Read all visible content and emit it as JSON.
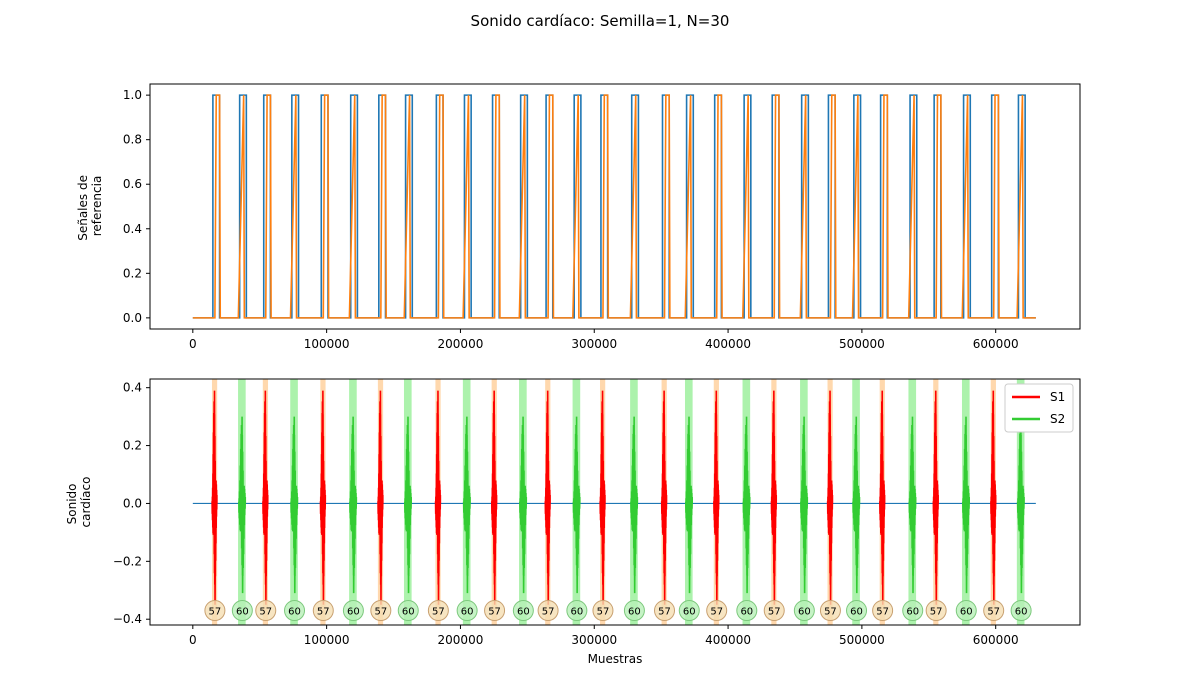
{
  "title": "Sonido cardíaco: Semilla=1, N=30",
  "colors": {
    "ref1": "#1f77b4",
    "ref2": "#ff7f0e",
    "s1": "#ff0000",
    "s2": "#33cc33",
    "s1_band": "#ffc88a",
    "s2_band": "#90ee90",
    "baseline": "#1f77b4"
  },
  "chart_data": [
    {
      "name": "reference",
      "type": "line",
      "ylabel": [
        "Señales de",
        "referencia"
      ],
      "xlim": [
        -32000,
        663000
      ],
      "ylim": [
        -0.05,
        1.05
      ],
      "xticks": [
        0,
        100000,
        200000,
        300000,
        400000,
        500000,
        600000
      ],
      "yticks": [
        "0.0",
        "0.2",
        "0.4",
        "0.6",
        "0.8",
        "1.0"
      ],
      "x_range": [
        0,
        630000
      ],
      "s1_starts": [
        15000,
        53000,
        96000,
        139000,
        182000,
        224000,
        264000,
        305000,
        351000,
        390000,
        433000,
        475000,
        514000,
        554000,
        597000
      ],
      "s2_starts": [
        35000,
        74000,
        118000,
        159000,
        203000,
        245000,
        285000,
        328000,
        369000,
        412000,
        455000,
        494000,
        536000,
        576000,
        617000
      ],
      "pulse_width": 5000
    },
    {
      "name": "heart-sound",
      "type": "line",
      "ylabel": [
        "Sonido",
        "cardíaco"
      ],
      "xlabel": "Muestras",
      "xlim": [
        -32000,
        663000
      ],
      "ylim": [
        -0.42,
        0.43
      ],
      "xticks": [
        0,
        100000,
        200000,
        300000,
        400000,
        500000,
        600000
      ],
      "yticks": [
        "−0.4",
        "−0.2",
        "0.0",
        "0.2",
        "0.4"
      ],
      "legend": [
        "S1",
        "S2"
      ],
      "legend_position": "upper right",
      "s1_amplitude": [
        0.39,
        -0.35
      ],
      "s2_amplitude": [
        0.3,
        -0.31
      ],
      "s1_label": "57",
      "s2_label": "60"
    }
  ]
}
